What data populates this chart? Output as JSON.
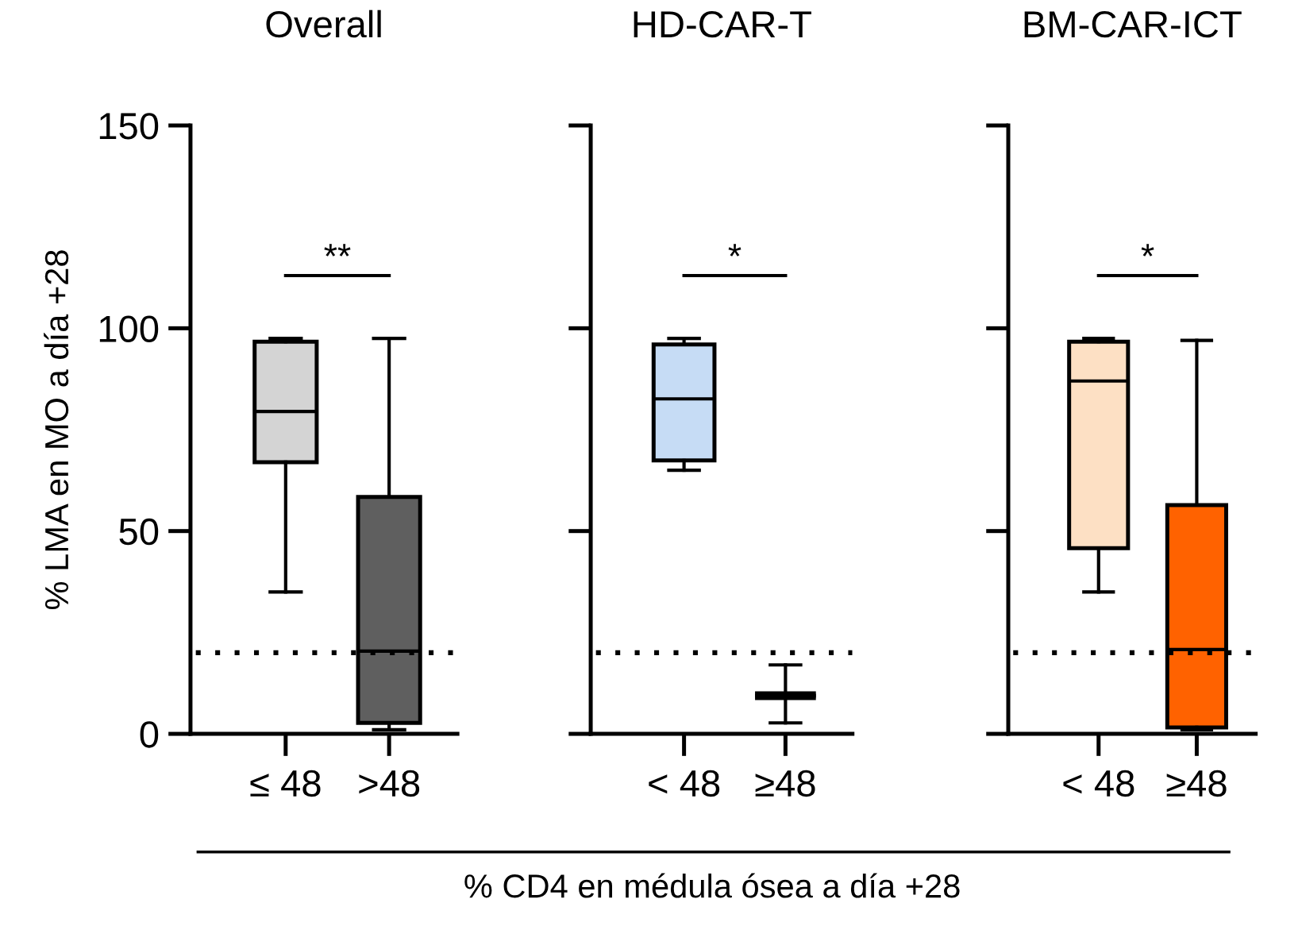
{
  "chart_data": [
    {
      "type": "box",
      "title": "Overall",
      "ylabel": "% LMA en MO a día +28",
      "categories": [
        "≤ 48",
        ">48"
      ],
      "ylim": [
        0,
        150
      ],
      "yticks": [
        0,
        50,
        100,
        150
      ],
      "grid": false,
      "annotations": [
        "**"
      ],
      "ref_lines": [
        {
          "axis": "y",
          "value": 20,
          "line_style": "dotted",
          "color": "#000000"
        }
      ],
      "series": [
        {
          "colors": [
            "#d4d4d4",
            "#5f5f5f"
          ],
          "boxes": [
            {
              "low": 35,
              "q1": 67,
              "median": 79.5,
              "q3": 96.7,
              "high": 97.5
            },
            {
              "low": 1,
              "q1": 2.7,
              "median": 20.4,
              "q3": 58.4,
              "high": 97.5
            }
          ]
        }
      ]
    },
    {
      "type": "box",
      "title": "HD-CAR-T",
      "xlabel": "% CD4 en médula ósea a día +28",
      "categories": [
        "< 48",
        "≥48"
      ],
      "ylim": [
        0,
        150
      ],
      "yticks": [
        {
          "value": 0,
          "label": null
        },
        {
          "value": 50,
          "label": null
        },
        {
          "value": 100,
          "label": null
        },
        {
          "value": 150,
          "label": null
        }
      ],
      "tick_labels": "x",
      "grid": false,
      "annotations": [
        "*"
      ],
      "ref_lines": [
        {
          "axis": "y",
          "value": 20,
          "line_style": "dotted",
          "color": "#000000"
        }
      ],
      "series": [
        {
          "colors": [
            "#c6dcf5",
            "#000000"
          ],
          "boxes": [
            {
              "low": 65,
              "q1": 67.4,
              "median": 82.6,
              "q3": 96,
              "high": 97.5
            },
            {
              "low": 2.7,
              "q1": 9.4,
              "median": 9.4,
              "q3": 9.4,
              "high": 17
            }
          ]
        }
      ]
    },
    {
      "type": "box",
      "title": "BM-CAR-ICT",
      "categories": [
        "< 48",
        "≥48"
      ],
      "ylim": [
        0,
        150
      ],
      "yticks": [
        {
          "value": 0,
          "label": null
        },
        {
          "value": 50,
          "label": null
        },
        {
          "value": 100,
          "label": null
        },
        {
          "value": 150,
          "label": null
        }
      ],
      "tick_labels": "x",
      "grid": false,
      "annotations": [
        "*"
      ],
      "ref_lines": [
        {
          "axis": "y",
          "value": 20,
          "line_style": "dotted",
          "color": "#000000"
        }
      ],
      "series": [
        {
          "colors": [
            "#fde0c4",
            "#ff6200"
          ],
          "boxes": [
            {
              "low": 35,
              "q1": 45.8,
              "median": 87,
              "q3": 96.7,
              "high": 97.5
            },
            {
              "low": 1,
              "q1": 1.6,
              "median": 20.8,
              "q3": 56.4,
              "high": 97
            }
          ]
        }
      ]
    }
  ]
}
